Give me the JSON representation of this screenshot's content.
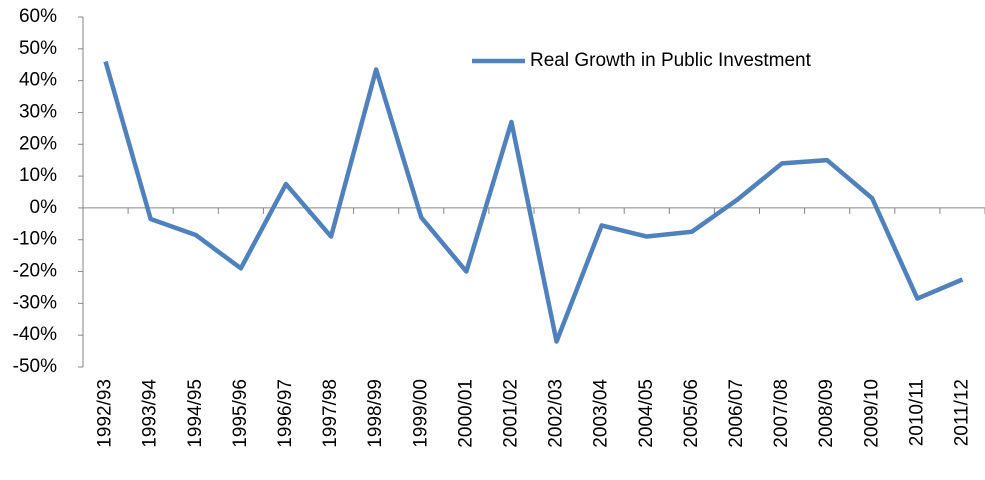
{
  "chart_data": {
    "type": "line",
    "categories": [
      "1992/93",
      "1993/94",
      "1994/95",
      "1995/96",
      "1996/97",
      "1997/98",
      "1998/99",
      "1999/00",
      "2000/01",
      "2001/02",
      "2002/03",
      "2003/04",
      "2004/05",
      "2005/06",
      "2006/07",
      "2007/08",
      "2008/09",
      "2009/10",
      "2010/11",
      "2011/12"
    ],
    "series": [
      {
        "name": "Real Growth in Public Investment",
        "color": "#4f81bd",
        "values": [
          46,
          -3.5,
          -8.5,
          -19,
          7.5,
          -9,
          43.5,
          -3,
          -20,
          27,
          -42,
          -5.5,
          -9,
          -7.5,
          2.5,
          14,
          15,
          3,
          -28.5,
          -22.5
        ]
      }
    ],
    "ylim": [
      -50,
      60
    ],
    "yticks": [
      {
        "value": -50,
        "label": "-50%"
      },
      {
        "value": -40,
        "label": "-40%"
      },
      {
        "value": -30,
        "label": "-30%"
      },
      {
        "value": -20,
        "label": "-20%"
      },
      {
        "value": -10,
        "label": "-10%"
      },
      {
        "value": 0,
        "label": "0%"
      },
      {
        "value": 10,
        "label": "10%"
      },
      {
        "value": 20,
        "label": "20%"
      },
      {
        "value": 30,
        "label": "30%"
      },
      {
        "value": 40,
        "label": "40%"
      },
      {
        "value": 50,
        "label": "50%"
      },
      {
        "value": 60,
        "label": "60%"
      }
    ],
    "legend": "top-right"
  }
}
